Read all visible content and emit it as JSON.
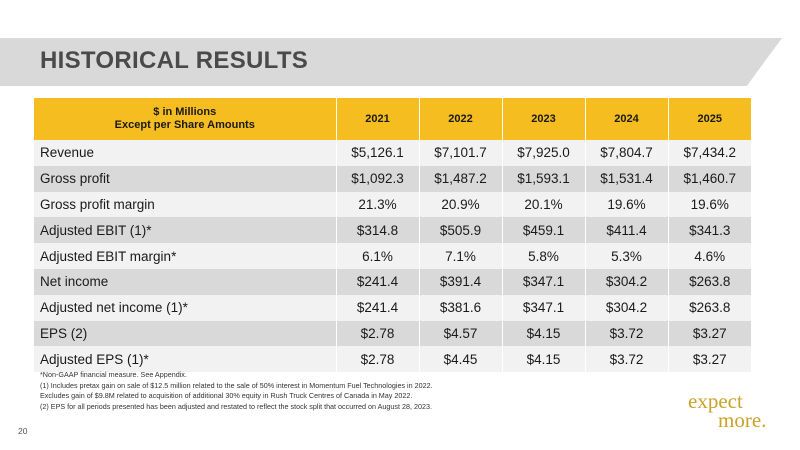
{
  "title": "HISTORICAL RESULTS",
  "table": {
    "header_label_line1": "$ in Millions",
    "header_label_line2": "Except per Share Amounts",
    "years": [
      "2021",
      "2022",
      "2023",
      "2024",
      "2025"
    ],
    "rows": [
      {
        "label": "Revenue",
        "values": [
          "$5,126.1",
          "$7,101.7",
          "$7,925.0",
          "$7,804.7",
          "$7,434.2"
        ]
      },
      {
        "label": "Gross profit",
        "values": [
          "$1,092.3",
          "$1,487.2",
          "$1,593.1",
          "$1,531.4",
          "$1,460.7"
        ]
      },
      {
        "label": "Gross profit margin",
        "values": [
          "21.3%",
          "20.9%",
          "20.1%",
          "19.6%",
          "19.6%"
        ]
      },
      {
        "label": "Adjusted EBIT (1)*",
        "values": [
          "$314.8",
          "$505.9",
          "$459.1",
          "$411.4",
          "$341.3"
        ]
      },
      {
        "label": "Adjusted EBIT margin*",
        "values": [
          "6.1%",
          "7.1%",
          "5.8%",
          "5.3%",
          "4.6%"
        ]
      },
      {
        "label": "Net income",
        "values": [
          "$241.4",
          "$391.4",
          "$347.1",
          "$304.2",
          "$263.8"
        ]
      },
      {
        "label": "Adjusted net income (1)*",
        "values": [
          "$241.4",
          "$381.6",
          "$347.1",
          "$304.2",
          "$263.8"
        ]
      },
      {
        "label": "EPS (2)",
        "values": [
          "$2.78",
          "$4.57",
          "$4.15",
          "$3.72",
          "$3.27"
        ]
      },
      {
        "label": "Adjusted EPS (1)*",
        "values": [
          "$2.78",
          "$4.45",
          "$4.15",
          "$3.72",
          "$3.27"
        ]
      }
    ]
  },
  "notes": [
    "*Non-GAAP financial measure.  See Appendix.",
    "(1)  Includes pretax gain on sale of $12.5 million related to the sale of 50% interest in Momentum Fuel Technologies in 2022.",
    "Excludes gain of $9.8M related to acquisition of additional 30% equity in Rush Truck  Centres of Canada in May 2022.",
    "(2)  EPS for all periods presented has been adjusted and restated to reflect the stock split that occurred on August 28, 2023."
  ],
  "page_number": "20",
  "brand": {
    "line1": "expect",
    "line2": "more.",
    "color": "#c9a227"
  },
  "colors": {
    "header": "#f5bd1f",
    "band": "#d9d9d9",
    "row_light": "#f2f2f2",
    "row_dark": "#d9d9d9"
  }
}
